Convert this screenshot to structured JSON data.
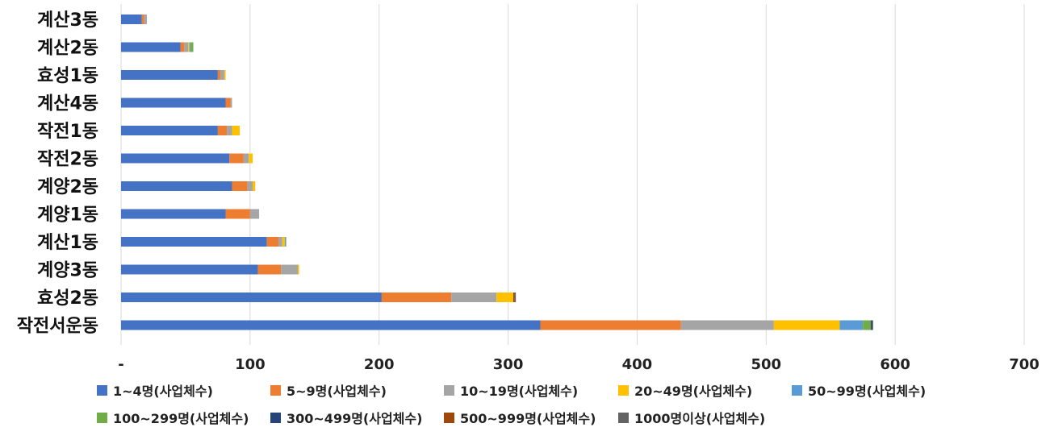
{
  "chart_data": {
    "type": "bar",
    "orientation": "horizontal",
    "stacked": true,
    "categories": [
      "계산3동",
      "계산2동",
      "효성1동",
      "계산4동",
      "작전1동",
      "작전2동",
      "계양2동",
      "계양1동",
      "계산1동",
      "계양3동",
      "효성2동",
      "작전서운동"
    ],
    "x_ticks": [
      "-",
      "100",
      "200",
      "300",
      "400",
      "500",
      "600",
      "700"
    ],
    "xlim": [
      0,
      700
    ],
    "grid": "vertical",
    "legend_position": "bottom",
    "series": [
      {
        "name": "1~4명(사업체수)",
        "color": "#4472C4",
        "values": [
          16,
          46,
          75,
          81,
          75,
          84,
          86,
          81,
          113,
          106,
          202,
          325
        ]
      },
      {
        "name": "5~9명(사업체수)",
        "color": "#ED7D31",
        "values": [
          2,
          3,
          2,
          4,
          7,
          11,
          12,
          19,
          9,
          18,
          54,
          109
        ]
      },
      {
        "name": "10~19명(사업체수)",
        "color": "#A5A5A5",
        "values": [
          2,
          3,
          3,
          1,
          4,
          4,
          4,
          7,
          3,
          13,
          35,
          72
        ]
      },
      {
        "name": "20~49명(사업체수)",
        "color": "#FFC000",
        "values": [
          0,
          1,
          1,
          0,
          6,
          3,
          2,
          0,
          2,
          1,
          13,
          51
        ]
      },
      {
        "name": "50~99명(사업체수)",
        "color": "#5B9BD5",
        "values": [
          0,
          1,
          0,
          0,
          0,
          0,
          0,
          0,
          1,
          0,
          0,
          18
        ]
      },
      {
        "name": "100~299명(사업체수)",
        "color": "#70AD47",
        "values": [
          0,
          2,
          0,
          0,
          0,
          0,
          0,
          0,
          0,
          0,
          0,
          6
        ]
      },
      {
        "name": "300~499명(사업체수)",
        "color": "#264478",
        "values": [
          0,
          0,
          0,
          0,
          0,
          0,
          0,
          0,
          0,
          0,
          0,
          1
        ]
      },
      {
        "name": "500~999명(사업체수)",
        "color": "#9E480E",
        "values": [
          0,
          0,
          0,
          0,
          0,
          0,
          0,
          0,
          0,
          0,
          1,
          0
        ]
      },
      {
        "name": "1000명이상(사업체수)",
        "color": "#636363",
        "values": [
          0,
          0,
          0,
          0,
          0,
          0,
          0,
          0,
          0,
          0,
          1,
          1
        ]
      }
    ]
  }
}
